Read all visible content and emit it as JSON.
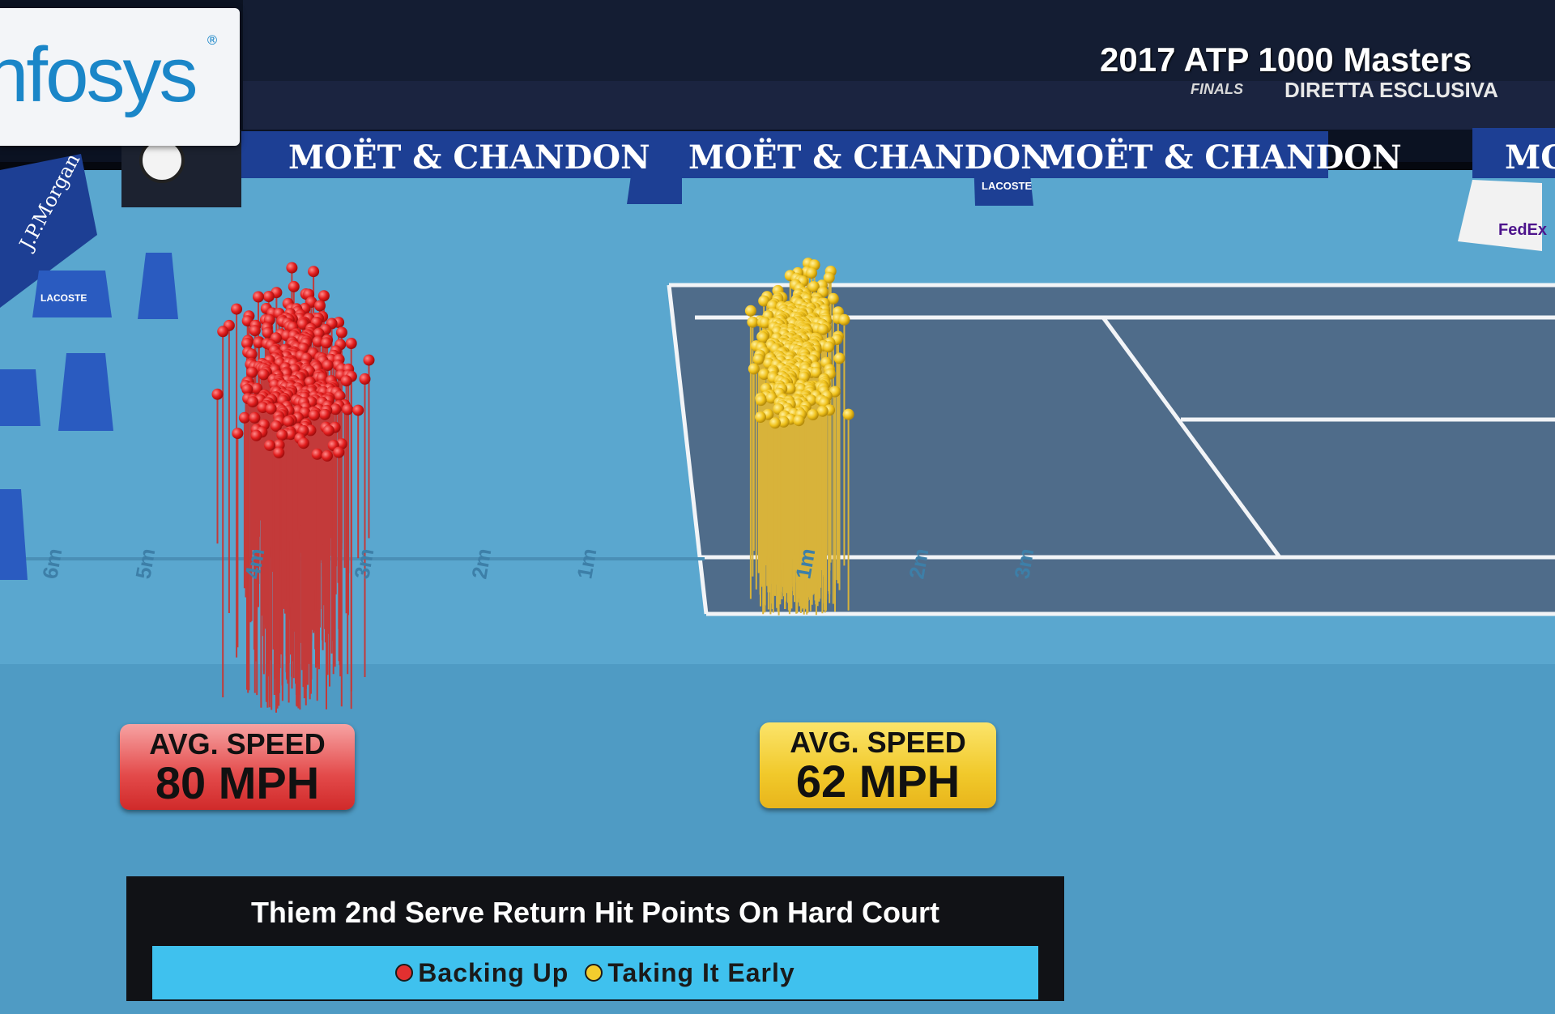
{
  "sponsors": {
    "logo": "nfosys",
    "banner_main": "MOËT & CHANDON",
    "banner_edge": "MO",
    "side_brand": "J.P.Morgan",
    "box_brand": "LACOSTE",
    "corner_brand": "FedEx"
  },
  "broadcast": {
    "title": "2017 ATP 1000 Masters",
    "subtitle": "DIRETTA ESCLUSIVA",
    "event_tag": "FINALS"
  },
  "stat_boxes": [
    {
      "label": "AVG. SPEED",
      "value": "80 MPH",
      "color": "#e34a4a"
    },
    {
      "label": "AVG. SPEED",
      "value": "62 MPH",
      "color": "#f1c92b"
    }
  ],
  "caption": {
    "title": "Thiem 2nd Serve Return Hit Points On Hard Court",
    "legend": [
      {
        "label": "Backing Up",
        "color": "#e23030"
      },
      {
        "label": "Taking It Early",
        "color": "#f2cc2e"
      }
    ]
  },
  "distance_markers": [
    "6m",
    "5m",
    "4m",
    "3m",
    "2m",
    "1m",
    "1m",
    "2m",
    "3m"
  ],
  "colors": {
    "court_blue": "#5aa7cf",
    "court_gray": "#4f6c8a",
    "banner_navy": "#1d3f94",
    "backing_up": "#e23030",
    "taking_early": "#f2cc2e"
  }
}
